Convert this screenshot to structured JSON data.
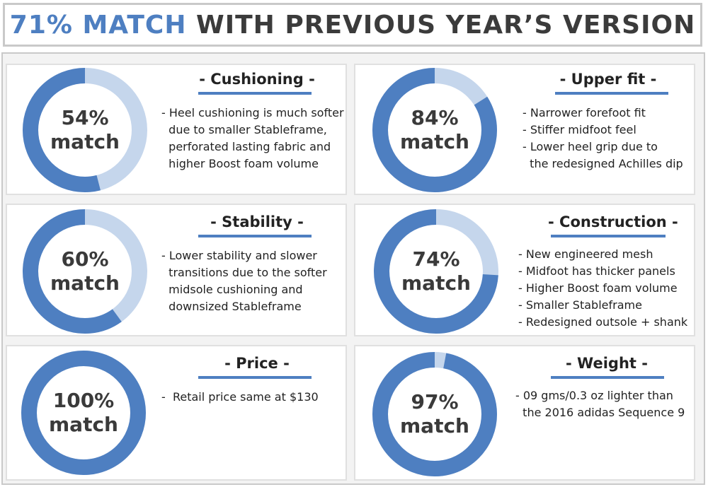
{
  "title": {
    "accent": "71% MATCH",
    "rest": " WITH PREVIOUS YEAR’S VERSION"
  },
  "colors": {
    "ring_fill": "#4e7fc1",
    "ring_track": "#c5d6ec",
    "underline": "#4e7fc1"
  },
  "cards": [
    {
      "percent_value": 54,
      "percent": "54%",
      "label": "match",
      "heading": "- Cushioning -",
      "lines": [
        "- Heel cushioning is much softer",
        "  due to smaller Stableframe,",
        "  perforated lasting fabric and",
        "  higher Boost foam volume"
      ]
    },
    {
      "percent_value": 84,
      "percent": "84%",
      "label": "match",
      "heading": "- Upper fit -",
      "lines": [
        "- Narrower forefoot fit",
        "- Stiffer midfoot feel",
        "- Lower heel grip due to",
        "  the redesigned Achilles dip"
      ]
    },
    {
      "percent_value": 60,
      "percent": "60%",
      "label": "match",
      "heading": "- Stability -",
      "lines": [
        "- Lower stability and slower",
        "  transitions due to the softer",
        "  midsole cushioning and",
        "  downsized Stableframe"
      ]
    },
    {
      "percent_value": 74,
      "percent": "74%",
      "label": "match",
      "heading": "- Construction -",
      "lines": [
        "- New engineered mesh",
        "- Midfoot has thicker panels",
        "- Higher Boost foam volume",
        "- Smaller Stableframe",
        "- Redesigned outsole + shank"
      ]
    },
    {
      "percent_value": 100,
      "percent": "100%",
      "label": "match",
      "heading": "- Price -",
      "lines": [
        "-  Retail price same at $130"
      ]
    },
    {
      "percent_value": 97,
      "percent": "97%",
      "label": "match",
      "heading": "- Weight -",
      "lines": [
        "- 09 gms/0.3 oz lighter than",
        "  the 2016 adidas Sequence 9"
      ]
    }
  ]
}
